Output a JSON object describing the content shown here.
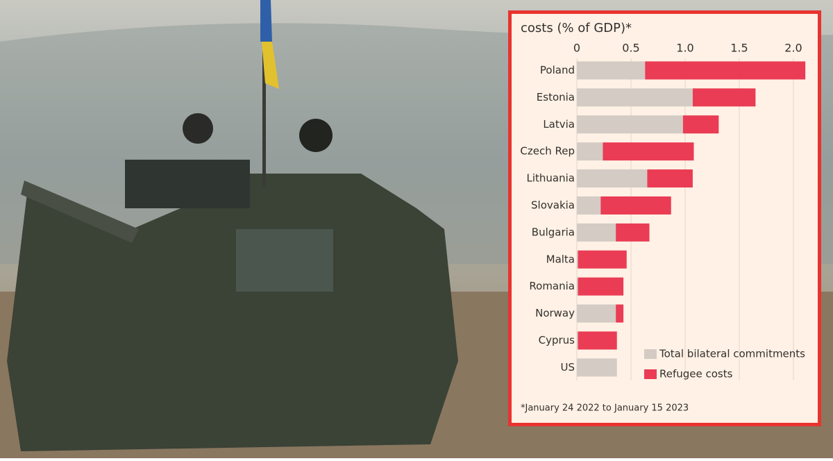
{
  "chart_data": {
    "type": "stacked_barh",
    "title": "costs (% of GDP)*",
    "footnote": "*January 24 2022 to January 15 2023",
    "categories": [
      "Poland",
      "Estonia",
      "Latvia",
      "Czech Rep",
      "Lithuania",
      "Slovakia",
      "Bulgaria",
      "Malta",
      "Romania",
      "Norway",
      "Cyprus",
      "US"
    ],
    "series": [
      {
        "name": "Total bilateral commitments",
        "color": "#d3cbc4",
        "values": [
          0.63,
          1.07,
          0.98,
          0.24,
          0.65,
          0.22,
          0.36,
          0.01,
          0.01,
          0.36,
          0.01,
          0.37
        ]
      },
      {
        "name": "Refugee costs",
        "color": "#ea3c55",
        "values": [
          1.48,
          0.58,
          0.33,
          0.84,
          0.42,
          0.65,
          0.31,
          0.45,
          0.42,
          0.07,
          0.36,
          0
        ]
      }
    ],
    "xlim": [
      0,
      2.1
    ],
    "xticks": [
      0,
      0.5,
      {
        "value": 1,
        "label": "1.0"
      },
      1.5,
      {
        "value": 2,
        "label": "2.0"
      }
    ],
    "grid": true,
    "legend": "lower right"
  }
}
